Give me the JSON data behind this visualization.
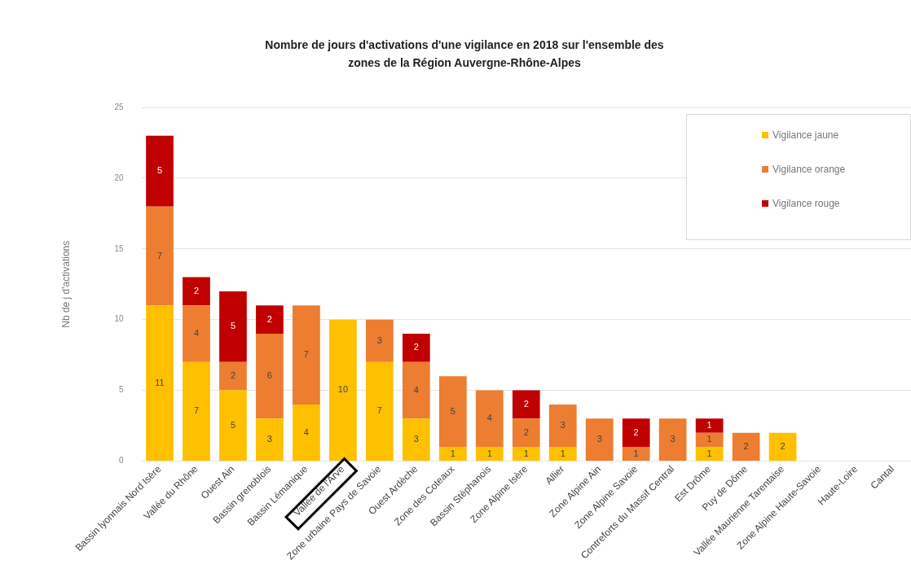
{
  "chart_data": {
    "type": "bar",
    "stacked": true,
    "title": "Nombre de jours d'activations d'une vigilance en 2018 sur l'ensemble des zones de la Région Auvergne-Rhône-Alpes",
    "ylabel": "Nb de j d'activations",
    "categories": [
      "Bassin lyonnais Nord Isère",
      "Vallée du Rhône",
      "Ouest Ain",
      "Bassin grenoblois",
      "Bassin Lémanique",
      "Vallée de l'Arve",
      "Zone urbaine Pays de Savoie",
      "Ouest Ardèche",
      "Zone des Coteaux",
      "Bassin Stéphanois",
      "Zone Alpine Isère",
      "Allier",
      "Zone Alpine Ain",
      "Zone Alpine Savoie",
      "Contreforts du Massif Central",
      "Est Drôme",
      "Puy de Dôme",
      "Vallée Maurienne Tarentaise",
      "Zone Alpine Haute-Savoie",
      "Haute-Loire",
      "Cantal"
    ],
    "series": [
      {
        "name": "Vigilance jaune",
        "color": "#ffc000",
        "values": [
          11,
          7,
          5,
          3,
          4,
          10,
          7,
          3,
          1,
          1,
          1,
          1,
          null,
          null,
          null,
          1,
          null,
          2,
          null,
          null,
          null
        ]
      },
      {
        "name": "Vigilance orange",
        "color": "#ed7d31",
        "values": [
          7,
          4,
          2,
          6,
          7,
          null,
          3,
          4,
          5,
          4,
          2,
          3,
          3,
          1,
          3,
          1,
          2,
          null,
          null,
          null,
          null
        ]
      },
      {
        "name": "Vigilance rouge",
        "color": "#c00000",
        "values": [
          5,
          2,
          5,
          2,
          null,
          null,
          null,
          2,
          null,
          null,
          2,
          null,
          null,
          2,
          null,
          1,
          null,
          null,
          null,
          null,
          null
        ]
      }
    ],
    "ylim": [
      0,
      25
    ],
    "yticks": [
      0,
      5,
      10,
      15,
      20,
      25
    ],
    "grid": "y",
    "legend": "top right",
    "data_labels": true
  }
}
